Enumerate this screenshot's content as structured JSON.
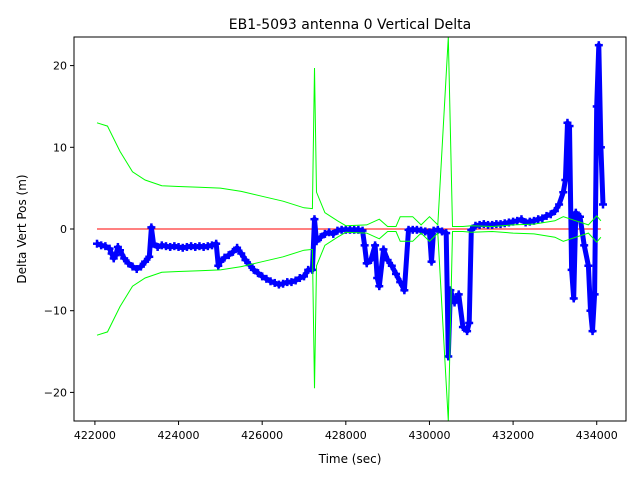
{
  "chart_data": {
    "type": "scatter",
    "title": "EB1-5093 antenna 0 Vertical Delta",
    "xlabel": "Time (sec)",
    "ylabel": "Delta Vert Pos (m)",
    "xlim": [
      421500,
      434700
    ],
    "ylim": [
      -23.5,
      23.5
    ],
    "xticks": [
      422000,
      424000,
      426000,
      428000,
      430000,
      432000,
      434000
    ],
    "yticks": [
      -20,
      -10,
      0,
      10,
      20
    ],
    "xtick_labels": [
      "422000",
      "424000",
      "426000",
      "428000",
      "430000",
      "432000",
      "434000"
    ],
    "ytick_labels": [
      "−20",
      "−10",
      "0",
      "10",
      "20"
    ],
    "grid": false,
    "series": [
      {
        "role": "delta",
        "color": "#0000ff",
        "marker": "plus",
        "points": [
          [
            422050,
            -1.8
          ],
          [
            422150,
            -2.0
          ],
          [
            422250,
            -2.1
          ],
          [
            422350,
            -2.4
          ],
          [
            422400,
            -3.0
          ],
          [
            422450,
            -3.6
          ],
          [
            422500,
            -3.2
          ],
          [
            422550,
            -2.2
          ],
          [
            422600,
            -2.6
          ],
          [
            422700,
            -3.6
          ],
          [
            422800,
            -4.2
          ],
          [
            422900,
            -4.6
          ],
          [
            423000,
            -4.9
          ],
          [
            423100,
            -4.6
          ],
          [
            423200,
            -4.0
          ],
          [
            423300,
            -3.4
          ],
          [
            423350,
            0.2
          ],
          [
            423400,
            -1.8
          ],
          [
            423500,
            -2.2
          ],
          [
            423600,
            -2.0
          ],
          [
            423700,
            -2.1
          ],
          [
            423800,
            -2.2
          ],
          [
            423900,
            -2.1
          ],
          [
            424000,
            -2.2
          ],
          [
            424100,
            -2.3
          ],
          [
            424200,
            -2.2
          ],
          [
            424300,
            -2.1
          ],
          [
            424400,
            -2.2
          ],
          [
            424500,
            -2.1
          ],
          [
            424600,
            -2.2
          ],
          [
            424700,
            -2.1
          ],
          [
            424800,
            -2.0
          ],
          [
            424900,
            -1.8
          ],
          [
            424950,
            -4.5
          ],
          [
            425000,
            -4.0
          ],
          [
            425100,
            -3.5
          ],
          [
            425200,
            -3.2
          ],
          [
            425300,
            -2.8
          ],
          [
            425400,
            -2.3
          ],
          [
            425500,
            -3.0
          ],
          [
            425600,
            -3.8
          ],
          [
            425700,
            -4.4
          ],
          [
            425800,
            -5.0
          ],
          [
            425900,
            -5.4
          ],
          [
            426000,
            -5.8
          ],
          [
            426100,
            -6.1
          ],
          [
            426200,
            -6.4
          ],
          [
            426300,
            -6.6
          ],
          [
            426400,
            -6.8
          ],
          [
            426500,
            -6.7
          ],
          [
            426600,
            -6.5
          ],
          [
            426700,
            -6.5
          ],
          [
            426800,
            -6.3
          ],
          [
            426900,
            -6.0
          ],
          [
            427000,
            -5.8
          ],
          [
            427100,
            -5.0
          ],
          [
            427200,
            -5.0
          ],
          [
            427250,
            1.2
          ],
          [
            427300,
            -1.5
          ],
          [
            427400,
            -1.0
          ],
          [
            427500,
            -0.6
          ],
          [
            427600,
            -0.4
          ],
          [
            427700,
            -0.6
          ],
          [
            427800,
            -0.2
          ],
          [
            427900,
            -0.1
          ],
          [
            428000,
            -0.1
          ],
          [
            428100,
            -0.1
          ],
          [
            428200,
            -0.1
          ],
          [
            428300,
            -0.1
          ],
          [
            428400,
            -0.2
          ],
          [
            428450,
            -2.0
          ],
          [
            428500,
            -4.2
          ],
          [
            428600,
            -3.8
          ],
          [
            428700,
            -2.0
          ],
          [
            428750,
            -6.0
          ],
          [
            428800,
            -7.0
          ],
          [
            428900,
            -2.5
          ],
          [
            429000,
            -3.8
          ],
          [
            429100,
            -4.5
          ],
          [
            429200,
            -5.5
          ],
          [
            429300,
            -6.5
          ],
          [
            429400,
            -7.5
          ],
          [
            429500,
            -0.1
          ],
          [
            429600,
            -0.1
          ],
          [
            429700,
            -0.1
          ],
          [
            429800,
            -0.2
          ],
          [
            429900,
            -0.3
          ],
          [
            430000,
            -0.4
          ],
          [
            430050,
            -4.0
          ],
          [
            430100,
            -0.2
          ],
          [
            430200,
            -0.1
          ],
          [
            430300,
            -0.3
          ],
          [
            430400,
            -0.5
          ],
          [
            430450,
            -15.6
          ],
          [
            430500,
            -7.5
          ],
          [
            430600,
            -9.0
          ],
          [
            430700,
            -8.0
          ],
          [
            430800,
            -12.0
          ],
          [
            430900,
            -12.5
          ],
          [
            430950,
            -11.5
          ],
          [
            431000,
            -0.1
          ],
          [
            431100,
            0.4
          ],
          [
            431200,
            0.5
          ],
          [
            431300,
            0.6
          ],
          [
            431400,
            0.5
          ],
          [
            431500,
            0.5
          ],
          [
            431600,
            0.6
          ],
          [
            431700,
            0.6
          ],
          [
            431800,
            0.7
          ],
          [
            431900,
            0.8
          ],
          [
            432000,
            0.9
          ],
          [
            432100,
            1.0
          ],
          [
            432200,
            1.2
          ],
          [
            432300,
            0.8
          ],
          [
            432400,
            0.9
          ],
          [
            432500,
            1.0
          ],
          [
            432600,
            1.2
          ],
          [
            432700,
            1.3
          ],
          [
            432800,
            1.6
          ],
          [
            432900,
            1.8
          ],
          [
            433000,
            2.2
          ],
          [
            433100,
            3.0
          ],
          [
            433200,
            4.5
          ],
          [
            433250,
            6.0
          ],
          [
            433300,
            13.0
          ],
          [
            433350,
            12.6
          ],
          [
            433400,
            -5.0
          ],
          [
            433450,
            -8.5
          ],
          [
            433500,
            2.0
          ],
          [
            433600,
            1.5
          ],
          [
            433700,
            -2.0
          ],
          [
            433800,
            -4.5
          ],
          [
            433850,
            -10.0
          ],
          [
            433900,
            -12.5
          ],
          [
            433950,
            -8.0
          ],
          [
            434000,
            15.0
          ],
          [
            434050,
            22.5
          ],
          [
            434100,
            10.0
          ],
          [
            434150,
            3.0
          ]
        ]
      },
      {
        "role": "upper-bound",
        "color": "#00ff00",
        "points": [
          [
            422050,
            13.0
          ],
          [
            422300,
            12.6
          ],
          [
            422600,
            9.5
          ],
          [
            422900,
            7.0
          ],
          [
            423200,
            6.0
          ],
          [
            423600,
            5.3
          ],
          [
            424000,
            5.2
          ],
          [
            424500,
            5.1
          ],
          [
            425000,
            5.0
          ],
          [
            425500,
            4.6
          ],
          [
            426000,
            4.0
          ],
          [
            426500,
            3.4
          ],
          [
            427000,
            2.6
          ],
          [
            427200,
            2.5
          ],
          [
            427250,
            19.7
          ],
          [
            427300,
            4.5
          ],
          [
            427500,
            2.0
          ],
          [
            427800,
            1.0
          ],
          [
            428000,
            0.4
          ],
          [
            428500,
            0.5
          ],
          [
            428800,
            1.2
          ],
          [
            429000,
            0.3
          ],
          [
            429200,
            0.3
          ],
          [
            429300,
            1.5
          ],
          [
            429600,
            1.5
          ],
          [
            429800,
            0.5
          ],
          [
            430000,
            1.5
          ],
          [
            430200,
            0.5
          ],
          [
            430450,
            23.5
          ],
          [
            430550,
            0.3
          ],
          [
            430800,
            0.3
          ],
          [
            431000,
            0.4
          ],
          [
            431500,
            0.3
          ],
          [
            432000,
            0.5
          ],
          [
            432500,
            0.6
          ],
          [
            433000,
            1.0
          ],
          [
            433200,
            1.5
          ],
          [
            433500,
            1.0
          ],
          [
            433800,
            0.5
          ],
          [
            434000,
            1.6
          ],
          [
            434100,
            1.0
          ]
        ]
      },
      {
        "role": "lower-bound",
        "color": "#00ff00",
        "points": [
          [
            422050,
            -13.0
          ],
          [
            422300,
            -12.6
          ],
          [
            422600,
            -9.5
          ],
          [
            422900,
            -7.0
          ],
          [
            423200,
            -6.0
          ],
          [
            423600,
            -5.3
          ],
          [
            424000,
            -5.2
          ],
          [
            424500,
            -5.1
          ],
          [
            425000,
            -5.0
          ],
          [
            425500,
            -4.6
          ],
          [
            426000,
            -4.0
          ],
          [
            426500,
            -3.4
          ],
          [
            427000,
            -2.6
          ],
          [
            427200,
            -2.5
          ],
          [
            427250,
            -19.5
          ],
          [
            427300,
            -4.5
          ],
          [
            427500,
            -2.0
          ],
          [
            427800,
            -1.0
          ],
          [
            428000,
            -0.4
          ],
          [
            428500,
            -0.5
          ],
          [
            428800,
            -1.2
          ],
          [
            429000,
            -0.3
          ],
          [
            429200,
            -0.3
          ],
          [
            429300,
            -1.5
          ],
          [
            429600,
            -1.5
          ],
          [
            429800,
            -0.5
          ],
          [
            430000,
            -1.5
          ],
          [
            430200,
            -0.5
          ],
          [
            430450,
            -23.5
          ],
          [
            430550,
            -0.3
          ],
          [
            430800,
            -0.3
          ],
          [
            431000,
            -0.4
          ],
          [
            431500,
            -0.3
          ],
          [
            432000,
            -0.5
          ],
          [
            432500,
            -0.6
          ],
          [
            433000,
            -1.0
          ],
          [
            433200,
            -1.5
          ],
          [
            433500,
            -1.0
          ],
          [
            433800,
            -0.5
          ],
          [
            434000,
            -1.6
          ],
          [
            434100,
            -1.0
          ]
        ]
      },
      {
        "role": "zero-reference",
        "color": "#ff0000",
        "points": [
          [
            422050,
            0.0
          ],
          [
            434100,
            0.0
          ]
        ]
      }
    ]
  }
}
